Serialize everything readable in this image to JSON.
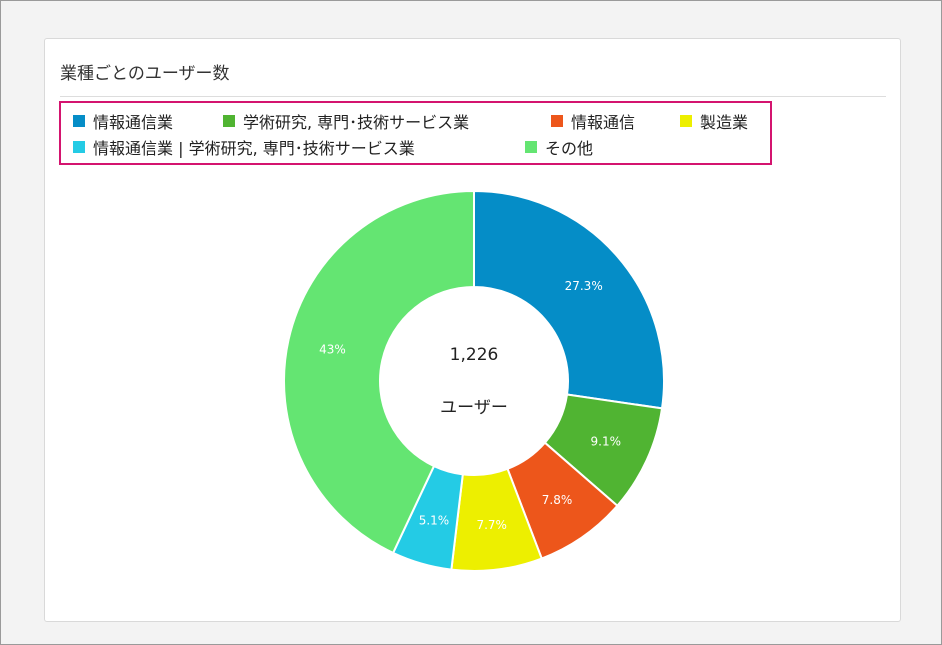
{
  "card": {
    "title": "業種ごとのユーザー数"
  },
  "center": {
    "total": "1,226",
    "unit": "ユーザー"
  },
  "chart_data": {
    "type": "pie",
    "donut": true,
    "legend_position": "top",
    "slices": [
      {
        "label": "情報通信業",
        "value": 27.3,
        "display": "27.3%",
        "color": "#058dc7"
      },
      {
        "label": "学術研究, 専門･技術サービス業",
        "value": 9.1,
        "display": "9.1%",
        "color": "#50b432"
      },
      {
        "label": "情報通信",
        "value": 7.8,
        "display": "7.8%",
        "color": "#ed561b"
      },
      {
        "label": "製造業",
        "value": 7.7,
        "display": "7.7%",
        "color": "#edef00"
      },
      {
        "label": "情報通信業 | 学術研究, 専門･技術サービス業",
        "value": 5.1,
        "display": "5.1%",
        "color": "#24cbe5"
      },
      {
        "label": "その他",
        "value": 43,
        "display": "43%",
        "color": "#64e572"
      }
    ]
  }
}
